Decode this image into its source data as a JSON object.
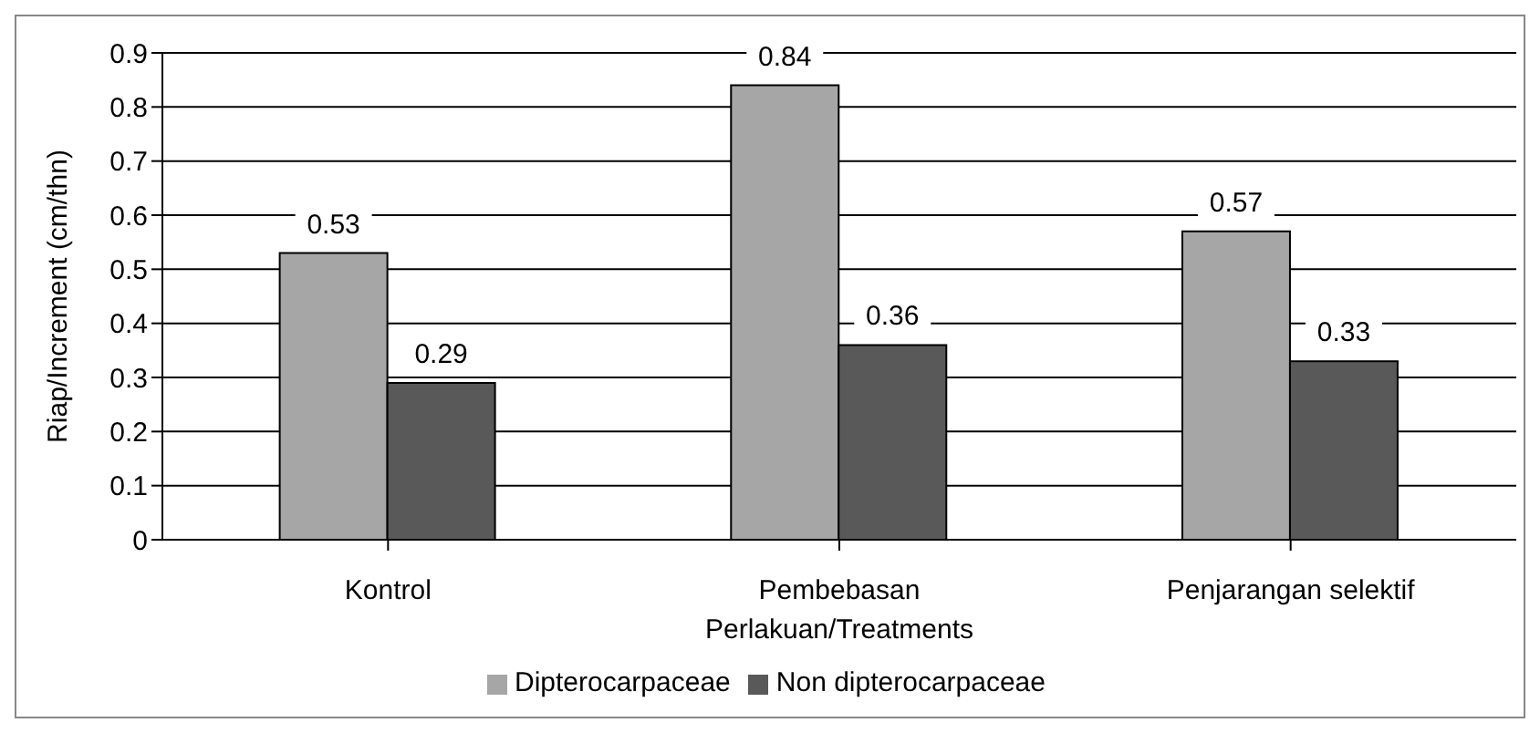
{
  "chart_data": {
    "type": "bar",
    "xlabel": "Perlakuan/Treatments",
    "ylabel": "Riap/Increment (cm/thn)",
    "categories": [
      "Kontrol",
      "Pembebasan",
      "Penjarangan selektif"
    ],
    "series": [
      {
        "name": "Dipterocarpaceae",
        "color": "#a6a6a6",
        "values": [
          0.53,
          0.84,
          0.57
        ]
      },
      {
        "name": "Non dipterocarpaceae",
        "color": "#595959",
        "values": [
          0.29,
          0.36,
          0.33
        ]
      }
    ],
    "ylim": [
      0,
      0.9
    ],
    "yticks": [
      0,
      0.1,
      0.2,
      0.3,
      0.4,
      0.5,
      0.6,
      0.7,
      0.8,
      0.9
    ],
    "grid": "y",
    "legend": "bottom",
    "data_labels": true
  }
}
